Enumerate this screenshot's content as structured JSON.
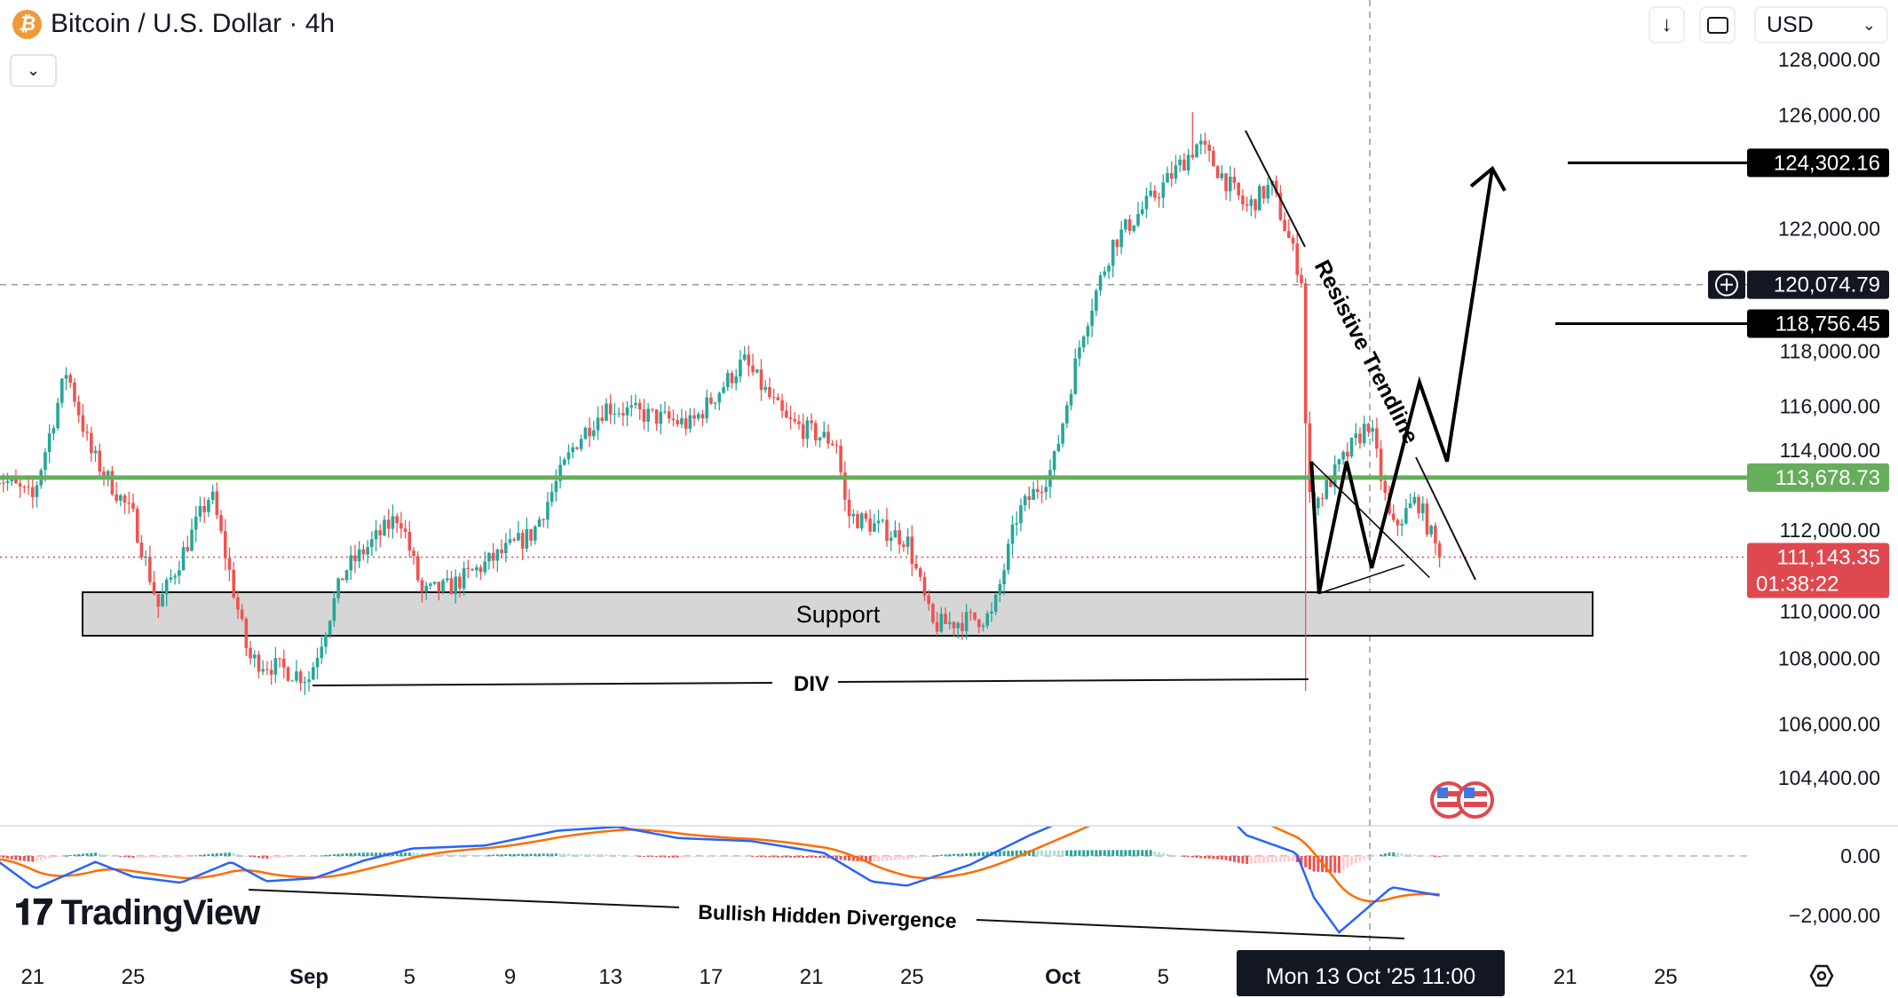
{
  "header": {
    "symbol_icon": "bitcoin-icon",
    "title": "Bitcoin / U.S. Dollar · 4h",
    "dropdown_icon": "chevron-down-icon",
    "download_icon": "arrow-down-icon",
    "fullscreen_icon": "fullscreen-icon",
    "currency": "USD"
  },
  "logo": "TradingView",
  "crosshair_time": "Mon 13 Oct '25   11:00",
  "chart_data": {
    "type": "candlestick",
    "title": "Bitcoin / U.S. Dollar · 4h",
    "price_ticks": [
      "128,000.00",
      "126,000.00",
      "122,000.00",
      "118,000.00",
      "116,000.00",
      "114,000.00",
      "112,000.00",
      "110,000.00",
      "108,000.00",
      "106,000.00",
      "104,400.00"
    ],
    "price_tick_values": [
      128000,
      126000,
      122000,
      118000,
      116000,
      114000,
      112000,
      110000,
      108000,
      106000,
      104400
    ],
    "time_ticks": [
      {
        "label": "21",
        "day": 0,
        "bold": false
      },
      {
        "label": "25",
        "day": 4,
        "bold": false
      },
      {
        "label": "Sep",
        "day": 11,
        "bold": true
      },
      {
        "label": "5",
        "day": 15,
        "bold": false
      },
      {
        "label": "9",
        "day": 19,
        "bold": false
      },
      {
        "label": "13",
        "day": 23,
        "bold": false
      },
      {
        "label": "17",
        "day": 27,
        "bold": false
      },
      {
        "label": "21",
        "day": 31,
        "bold": false
      },
      {
        "label": "25",
        "day": 35,
        "bold": false
      },
      {
        "label": "Oct",
        "day": 41,
        "bold": true
      },
      {
        "label": "5",
        "day": 45,
        "bold": false
      },
      {
        "label": "21",
        "day": 61,
        "bold": false
      },
      {
        "label": "25",
        "day": 65,
        "bold": false
      }
    ],
    "time_unit": "days since Aug 21 2025",
    "close_path": [
      [
        -1.5,
        113800
      ],
      [
        0,
        113000
      ],
      [
        1.35,
        117200
      ],
      [
        2.3,
        114500
      ],
      [
        4,
        112400
      ],
      [
        5,
        109600
      ],
      [
        7.1,
        113200
      ],
      [
        8.6,
        108000
      ],
      [
        11,
        107400
      ],
      [
        12.4,
        110700
      ],
      [
        14.6,
        112500
      ],
      [
        15.5,
        110000
      ],
      [
        16.6,
        110200
      ],
      [
        19.9,
        111900
      ],
      [
        21.6,
        114800
      ],
      [
        22.8,
        116000
      ],
      [
        26.2,
        115400
      ],
      [
        28.3,
        117500
      ],
      [
        30,
        115500
      ],
      [
        32,
        114800
      ],
      [
        32.4,
        112500
      ],
      [
        34.8,
        111700
      ],
      [
        35.8,
        109000
      ],
      [
        38.2,
        109300
      ],
      [
        39.2,
        112500
      ],
      [
        40.6,
        114000
      ],
      [
        41.8,
        118500
      ],
      [
        43,
        121500
      ],
      [
        45,
        123500
      ],
      [
        46.4,
        125000
      ],
      [
        48.3,
        122700
      ],
      [
        49.3,
        123500
      ],
      [
        50.5,
        120300
      ],
      [
        50.75,
        113000
      ],
      [
        51.2,
        113000
      ],
      [
        52.2,
        114300
      ],
      [
        53.2,
        115500
      ],
      [
        54.1,
        112000
      ],
      [
        55.1,
        113000
      ],
      [
        56,
        111143.35
      ]
    ],
    "macd_path": [
      [
        -1.5,
        -100
      ],
      [
        0.1,
        -1100
      ],
      [
        2.5,
        -200
      ],
      [
        4,
        -700
      ],
      [
        5.9,
        -900
      ],
      [
        7.9,
        -200
      ],
      [
        9.3,
        -850
      ],
      [
        11.2,
        -750
      ],
      [
        13.2,
        -150
      ],
      [
        15.1,
        250
      ],
      [
        18,
        350
      ],
      [
        20.9,
        850
      ],
      [
        23.3,
        980
      ],
      [
        25.7,
        600
      ],
      [
        28.6,
        500
      ],
      [
        31.5,
        100
      ],
      [
        33.4,
        -860
      ],
      [
        34.8,
        -1000
      ],
      [
        37.3,
        -300
      ],
      [
        39.7,
        700
      ],
      [
        41.1,
        1200
      ],
      [
        44.5,
        2500
      ],
      [
        47.4,
        1500
      ],
      [
        48.3,
        700
      ],
      [
        50.3,
        100
      ],
      [
        51,
        -1400
      ],
      [
        52,
        -2570
      ],
      [
        53.2,
        -1700
      ],
      [
        54.1,
        -1050
      ],
      [
        56,
        -1330
      ]
    ],
    "macd_ticks": [
      "0.00",
      "−2,000.00"
    ],
    "macd_tick_values": [
      0,
      -2000
    ],
    "levels": {
      "target_high": {
        "label": "124,302.16",
        "value": 124302.16,
        "color": "#000000"
      },
      "crosshair_price": {
        "label": "120,074.79",
        "value": 120074.79,
        "color": "#131722"
      },
      "target_mid": {
        "label": "118,756.45",
        "value": 118756.45,
        "color": "#000000"
      },
      "green_level": {
        "label": "113,678.73",
        "value": 113678.73,
        "color": "#66ad5c"
      },
      "last_price": {
        "label": "111,143.35",
        "value": 111143.35,
        "countdown": "01:38:22",
        "color": "#e0484f"
      }
    },
    "support_zone": {
      "label": "Support",
      "top": 110600,
      "bottom": 109000
    },
    "annotations": {
      "div_label": "DIV",
      "trendline_label": "Resistive Trendline",
      "macd_label": "Bullish Hidden Divergence"
    },
    "projection_path": [
      [
        50.9,
        114200
      ],
      [
        51.2,
        110000
      ],
      [
        52.3,
        114200
      ],
      [
        53.3,
        110800
      ],
      [
        55.2,
        116800
      ],
      [
        56.3,
        114200
      ],
      [
        58.1,
        124100
      ]
    ],
    "colors": {
      "up": "#26a69a",
      "down": "#ef5350",
      "macd": "#2962ff",
      "signal": "#ff6d00"
    }
  }
}
